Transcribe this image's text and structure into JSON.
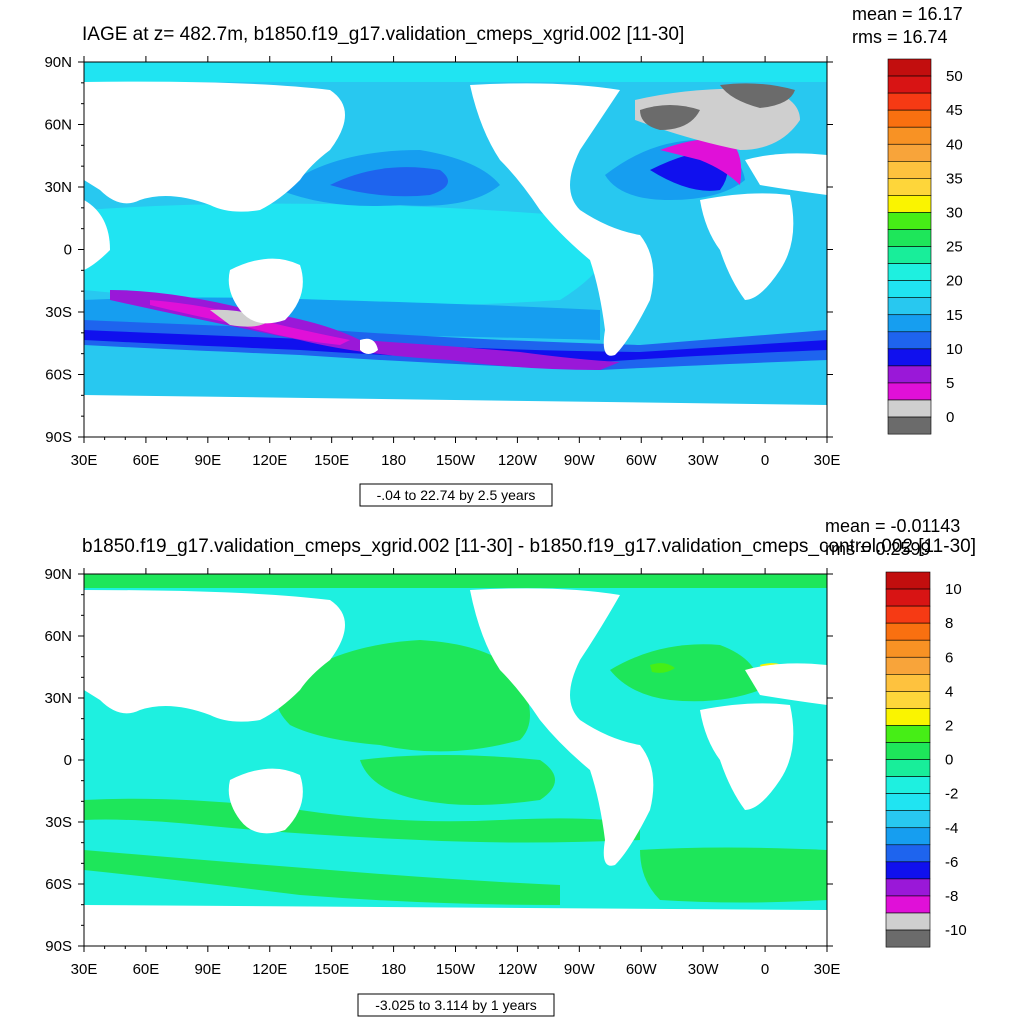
{
  "panels": [
    {
      "title": "IAGE at z= 482.7m, b1850.f19_g17.validation_cmeps_xgrid.002 [11-30]",
      "stats": {
        "mean": "mean = 16.17",
        "rms": "rms = 16.74"
      },
      "range_label": "-.04 to 22.74 by 2.5 years",
      "colorbar_labels": [
        "50",
        "45",
        "40",
        "35",
        "30",
        "25",
        "20",
        "15",
        "10",
        "5",
        "0"
      ]
    },
    {
      "title": "b1850.f19_g17.validation_cmeps_xgrid.002 [11-30] - b1850.f19_g17.validation_cmeps_control.002 [11-30]",
      "stats": {
        "mean": "mean = -0.01143",
        "rms": "rms = 0.2599"
      },
      "range_label": "-3.025 to 3.114 by 1 years",
      "colorbar_labels": [
        "10",
        "8",
        "6",
        "4",
        "2",
        "0",
        "-2",
        "-4",
        "-6",
        "-8",
        "-10"
      ]
    }
  ],
  "chart_data": [
    {
      "type": "heatmap",
      "title": "IAGE at z= 482.7m, b1850.f19_g17.validation_cmeps_xgrid.002 [11-30]",
      "x_ticks": [
        "30E",
        "60E",
        "90E",
        "120E",
        "150E",
        "180",
        "150W",
        "120W",
        "90W",
        "60W",
        "30W",
        "0",
        "30E"
      ],
      "y_ticks": [
        "90N",
        "60N",
        "30N",
        "0",
        "30S",
        "60S",
        "90S"
      ],
      "mean": 16.17,
      "rms": 16.74,
      "contour_min": -0.04,
      "contour_max": 22.74,
      "contour_interval": 2.5,
      "units": "years",
      "colorbar_levels": [
        0,
        2.5,
        5,
        7.5,
        10,
        12.5,
        15,
        17.5,
        20,
        22.5,
        25,
        27.5,
        30,
        32.5,
        35,
        37.5,
        40,
        42.5,
        45,
        47.5,
        50
      ],
      "colorbar_colors": [
        "#6b6b6b",
        "#cfcfcf",
        "#e010d8",
        "#9a18d8",
        "#1010ee",
        "#1e64ee",
        "#169ef0",
        "#28c8f0",
        "#20e4f2",
        "#1ef0e0",
        "#18ee9a",
        "#1ee65a",
        "#46ee16",
        "#faf400",
        "#fed63a",
        "#fec23e",
        "#f8a43a",
        "#f89224",
        "#f97010",
        "#f63a14",
        "#d81414",
        "#c20e0e"
      ]
    },
    {
      "type": "heatmap",
      "title": "b1850.f19_g17.validation_cmeps_xgrid.002 [11-30] - b1850.f19_g17.validation_cmeps_control.002 [11-30]",
      "x_ticks": [
        "30E",
        "60E",
        "90E",
        "120E",
        "150E",
        "180",
        "150W",
        "120W",
        "90W",
        "60W",
        "30W",
        "0",
        "30E"
      ],
      "y_ticks": [
        "90N",
        "60N",
        "30N",
        "0",
        "30S",
        "60S",
        "90S"
      ],
      "mean": -0.01143,
      "rms": 0.2599,
      "contour_min": -3.025,
      "contour_max": 3.114,
      "contour_interval": 1,
      "units": "years",
      "colorbar_levels": [
        -10,
        -9,
        -8,
        -7,
        -6,
        -5,
        -4,
        -3,
        -2,
        -1,
        0,
        1,
        2,
        3,
        4,
        5,
        6,
        7,
        8,
        9,
        10
      ],
      "colorbar_colors": [
        "#6b6b6b",
        "#cfcfcf",
        "#e010d8",
        "#9a18d8",
        "#1010ee",
        "#1e64ee",
        "#169ef0",
        "#28c8f0",
        "#20e4f2",
        "#1ef0e0",
        "#18ee9a",
        "#1ee65a",
        "#46ee16",
        "#faf400",
        "#fed63a",
        "#fec23e",
        "#f8a43a",
        "#f89224",
        "#f97010",
        "#f63a14",
        "#d81414",
        "#c20e0e"
      ]
    }
  ]
}
